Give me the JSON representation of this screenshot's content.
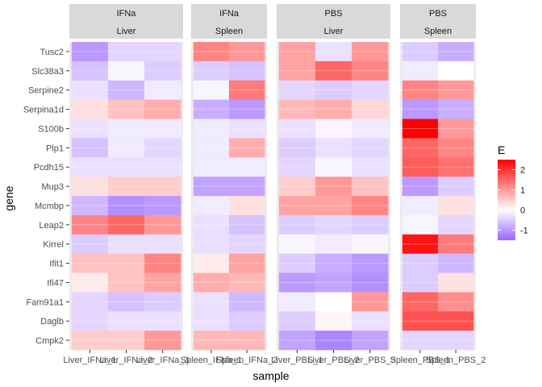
{
  "chart_data": {
    "type": "heatmap",
    "title": "",
    "xlabel": "sample",
    "ylabel": "gene",
    "legend": {
      "title": "E",
      "placement": "right",
      "ticks": [
        2,
        1,
        0,
        -1
      ],
      "range": [
        -1.5,
        2.5
      ]
    },
    "colors": {
      "low": "#9966ff",
      "mid": "#ffffff",
      "high": "#ff0000",
      "panel_bg": "#ebebeb",
      "strip_bg": "#d9d9d9",
      "grid": "#ffffff"
    },
    "genes": [
      "Tusc2",
      "Slc38a3",
      "Serpine2",
      "Serpina1d",
      "S100b",
      "Plp1",
      "Pcdh15",
      "Mup3",
      "Mcmbp",
      "Leap2",
      "Kirrel",
      "Ifit1",
      "Ifi47",
      "Fam91a1",
      "Daglb",
      "Cmpk2"
    ],
    "panels": [
      {
        "strip_top": "IFNa",
        "strip_bottom": "Liver",
        "samples": [
          "Liver_IFNa_1",
          "Liver_IFNa_2",
          "Liver_IFNa_3"
        ],
        "values": [
          [
            -1.0,
            -0.4,
            -0.4
          ],
          [
            -0.6,
            -0.1,
            -0.5
          ],
          [
            -0.3,
            -0.7,
            -0.2
          ],
          [
            0.3,
            0.6,
            0.8
          ],
          [
            -0.3,
            -0.2,
            -0.2
          ],
          [
            -0.6,
            -0.2,
            -0.4
          ],
          [
            -0.3,
            -0.3,
            -0.3
          ],
          [
            0.3,
            0.5,
            0.5
          ],
          [
            -0.7,
            -1.1,
            -1.0
          ],
          [
            1.2,
            1.5,
            1.0
          ],
          [
            -0.5,
            -0.3,
            -0.3
          ],
          [
            0.6,
            0.6,
            1.2
          ],
          [
            0.2,
            0.6,
            0.9
          ],
          [
            -0.4,
            -0.6,
            -0.5
          ],
          [
            -0.4,
            -0.3,
            -0.3
          ],
          [
            0.5,
            0.5,
            1.0
          ]
        ]
      },
      {
        "strip_top": "IFNa",
        "strip_bottom": "Spleen",
        "samples": [
          "Spleen_IFNa_1",
          "Spleen_IFNa_2"
        ],
        "values": [
          [
            1.2,
            1.0
          ],
          [
            -0.5,
            -0.6
          ],
          [
            -0.1,
            1.3
          ],
          [
            -0.8,
            -1.0
          ],
          [
            -0.2,
            -0.3
          ],
          [
            -0.2,
            0.8
          ],
          [
            -0.2,
            -0.2
          ],
          [
            -0.9,
            -0.9
          ],
          [
            -0.2,
            0.3
          ],
          [
            -0.3,
            -0.6
          ],
          [
            -0.3,
            -0.4
          ],
          [
            0.2,
            0.9
          ],
          [
            0.8,
            0.7
          ],
          [
            -0.3,
            -0.7
          ],
          [
            -0.3,
            -0.5
          ],
          [
            0.7,
            0.7
          ]
        ]
      },
      {
        "strip_top": "PBS",
        "strip_bottom": "Liver",
        "samples": [
          "Liver_PBS_1",
          "Liver_PBS_2",
          "Liver_PBS_3"
        ],
        "values": [
          [
            0.9,
            -0.3,
            1.0
          ],
          [
            0.9,
            1.5,
            1.2
          ],
          [
            -0.4,
            -0.5,
            -0.4
          ],
          [
            0.7,
            0.8,
            0.4
          ],
          [
            -0.3,
            -0.1,
            -0.2
          ],
          [
            -0.5,
            -0.3,
            -0.4
          ],
          [
            -0.4,
            -0.1,
            -0.3
          ],
          [
            0.5,
            1.0,
            0.6
          ],
          [
            0.9,
            0.9,
            1.2
          ],
          [
            -0.5,
            -0.4,
            -0.5
          ],
          [
            -0.1,
            -0.2,
            -0.1
          ],
          [
            -0.5,
            -0.8,
            -1.0
          ],
          [
            -1.0,
            -0.9,
            -1.1
          ],
          [
            -0.2,
            0.0,
            1.0
          ],
          [
            -0.5,
            0.1,
            -0.3
          ],
          [
            -0.9,
            -1.2,
            -0.9
          ]
        ]
      },
      {
        "strip_top": "PBS",
        "strip_bottom": "Spleen",
        "samples": [
          "Spleen_PBS_1",
          "Spleen_PBS_2"
        ],
        "values": [
          [
            -0.5,
            -0.8
          ],
          [
            -0.2,
            0.0
          ],
          [
            1.2,
            1.0
          ],
          [
            -1.0,
            -0.8
          ],
          [
            2.5,
            1.0
          ],
          [
            1.5,
            1.2
          ],
          [
            1.6,
            1.4
          ],
          [
            -1.0,
            -0.5
          ],
          [
            -0.2,
            0.3
          ],
          [
            -0.1,
            -0.4
          ],
          [
            2.3,
            1.3
          ],
          [
            -0.5,
            -0.7
          ],
          [
            -0.5,
            0.3
          ],
          [
            1.5,
            1.1
          ],
          [
            1.7,
            1.7
          ],
          [
            -0.4,
            -0.4
          ]
        ]
      }
    ]
  }
}
